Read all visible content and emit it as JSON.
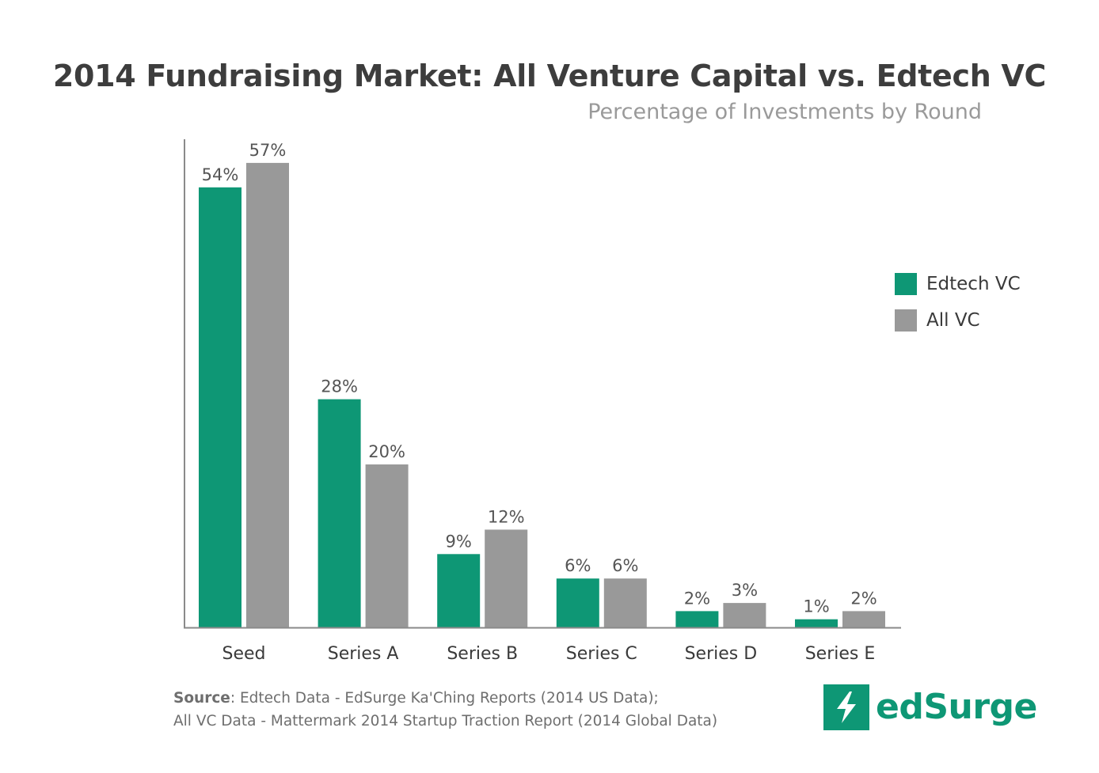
{
  "title": "2014 Fundraising Market: All Venture Capital vs. Edtech VC",
  "subtitle": "Percentage of Investments by Round",
  "colors": {
    "edtech": "#0e9775",
    "all_vc": "#999999",
    "axis": "#8a8a8a"
  },
  "legend": {
    "items": [
      {
        "label": "Edtech VC",
        "color": "#0e9775"
      },
      {
        "label": "All VC",
        "color": "#999999"
      }
    ]
  },
  "chart_data": {
    "type": "bar",
    "categories": [
      "Seed",
      "Series A",
      "Series B",
      "Series C",
      "Series D",
      "Series E"
    ],
    "series": [
      {
        "name": "Edtech VC",
        "values": [
          54,
          28,
          9,
          6,
          2,
          1
        ],
        "labels": [
          "54%",
          "28%",
          "9%",
          "6%",
          "2%",
          "1%"
        ]
      },
      {
        "name": "All VC",
        "values": [
          57,
          20,
          12,
          6,
          3,
          2
        ],
        "labels": [
          "57%",
          "20%",
          "12%",
          "6%",
          "3%",
          "2%"
        ]
      }
    ],
    "title": "2014 Fundraising Market: All Venture Capital vs. Edtech VC",
    "subtitle": "Percentage of Investments by Round",
    "ylim": [
      0,
      60
    ],
    "grid": false,
    "legend_position": "right"
  },
  "source": {
    "label": "Source",
    "line1": ": Edtech Data - EdSurge Ka'Ching Reports (2014 US Data);",
    "line2": "All VC Data - Mattermark 2014 Startup Traction Report (2014 Global Data)"
  },
  "logo": {
    "text": "edSurge",
    "icon": "lightning-bolt-icon"
  }
}
